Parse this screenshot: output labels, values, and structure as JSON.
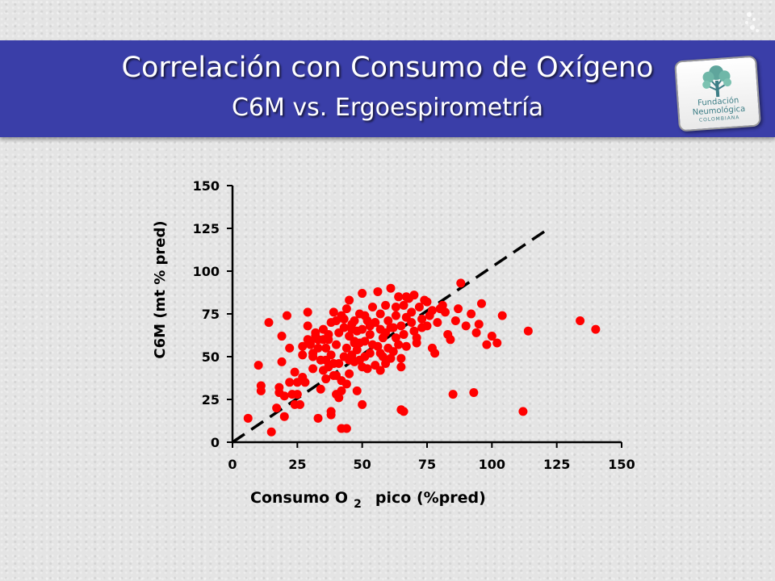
{
  "slide": {
    "title": "Correlación con Consumo de Oxígeno",
    "subtitle": "C6M vs. Ergoespirometría"
  },
  "logo": {
    "line1": "Fundación",
    "line2": "Neumológica",
    "line3": "COLOMBIANA",
    "color": "#3d7e86"
  },
  "colors": {
    "banner": "#3a3ea8",
    "points": "#ff0000"
  },
  "chart_data": {
    "type": "scatter",
    "title": "",
    "xlabel_main": "Consumo O",
    "xlabel_sub": "2",
    "xlabel_tail": "pico (%pred)",
    "ylabel": "C6M (mt % pred)",
    "xlim": [
      0,
      150
    ],
    "ylim": [
      0,
      150
    ],
    "xticks": [
      0,
      25,
      50,
      75,
      100,
      125,
      150
    ],
    "yticks": [
      0,
      25,
      50,
      75,
      100,
      125,
      150
    ],
    "grid": false,
    "reference_line": {
      "style": "dashed",
      "from": [
        0,
        0
      ],
      "to": [
        122,
        125
      ]
    },
    "x": [
      6,
      10,
      11,
      11,
      14,
      17,
      18,
      19,
      20,
      21,
      22,
      23,
      24,
      25,
      26,
      27,
      28,
      29,
      29,
      30,
      31,
      31,
      32,
      33,
      33,
      34,
      35,
      35,
      36,
      36,
      37,
      37,
      38,
      38,
      38,
      39,
      39,
      40,
      40,
      40,
      41,
      41,
      42,
      42,
      42,
      43,
      43,
      44,
      44,
      44,
      45,
      45,
      45,
      46,
      46,
      47,
      47,
      47,
      48,
      48,
      49,
      49,
      49,
      50,
      50,
      50,
      51,
      51,
      51,
      52,
      52,
      53,
      53,
      54,
      54,
      55,
      55,
      56,
      56,
      57,
      57,
      58,
      58,
      59,
      59,
      60,
      60,
      61,
      62,
      62,
      63,
      63,
      64,
      64,
      65,
      65,
      66,
      66,
      67,
      67,
      68,
      69,
      70,
      70,
      71,
      72,
      73,
      74,
      75,
      76,
      77,
      78,
      80,
      82,
      84,
      86,
      88,
      90,
      92,
      94,
      95,
      96,
      98,
      100,
      102,
      104,
      112,
      114,
      134,
      140,
      85,
      93,
      65,
      66,
      22,
      38,
      44,
      46,
      48,
      50,
      36,
      40,
      42,
      57,
      61,
      27,
      30,
      34,
      32,
      39,
      41,
      20,
      24,
      15,
      18,
      19,
      25,
      27,
      29,
      31,
      33,
      35,
      37,
      43,
      45,
      47,
      53,
      55,
      57,
      59,
      61,
      63,
      65,
      67,
      69,
      71,
      73,
      75,
      77,
      79,
      81,
      83,
      87
    ],
    "y": [
      14,
      45,
      30,
      33,
      70,
      20,
      32,
      47,
      27,
      74,
      35,
      28,
      41,
      28,
      22,
      38,
      35,
      60,
      76,
      57,
      43,
      52,
      64,
      55,
      14,
      31,
      42,
      60,
      55,
      48,
      63,
      44,
      70,
      51,
      18,
      76,
      46,
      71,
      39,
      57,
      64,
      46,
      8,
      74,
      30,
      50,
      67,
      55,
      34,
      78,
      83,
      62,
      40,
      51,
      69,
      59,
      71,
      47,
      65,
      54,
      48,
      75,
      58,
      87,
      66,
      44,
      59,
      50,
      74,
      71,
      43,
      52,
      68,
      79,
      57,
      45,
      70,
      56,
      88,
      75,
      66,
      61,
      50,
      80,
      46,
      71,
      55,
      90,
      67,
      53,
      74,
      61,
      85,
      57,
      68,
      49,
      80,
      63,
      73,
      56,
      84,
      76,
      65,
      86,
      58,
      79,
      72,
      83,
      68,
      74,
      77,
      52,
      78,
      76,
      60,
      71,
      93,
      68,
      75,
      64,
      69,
      81,
      57,
      62,
      58,
      74,
      18,
      65,
      71,
      66,
      28,
      29,
      19,
      18,
      55,
      16,
      8,
      66,
      30,
      22,
      37,
      28,
      36,
      42,
      49,
      51,
      58,
      48,
      62,
      39,
      26,
      15,
      22,
      6,
      29,
      62,
      35,
      56,
      68,
      50,
      60,
      66,
      60,
      72,
      48,
      58,
      63,
      70,
      52,
      64,
      67,
      79,
      44,
      85,
      70,
      61,
      67,
      82,
      55,
      70,
      80,
      63,
      78
    ]
  }
}
